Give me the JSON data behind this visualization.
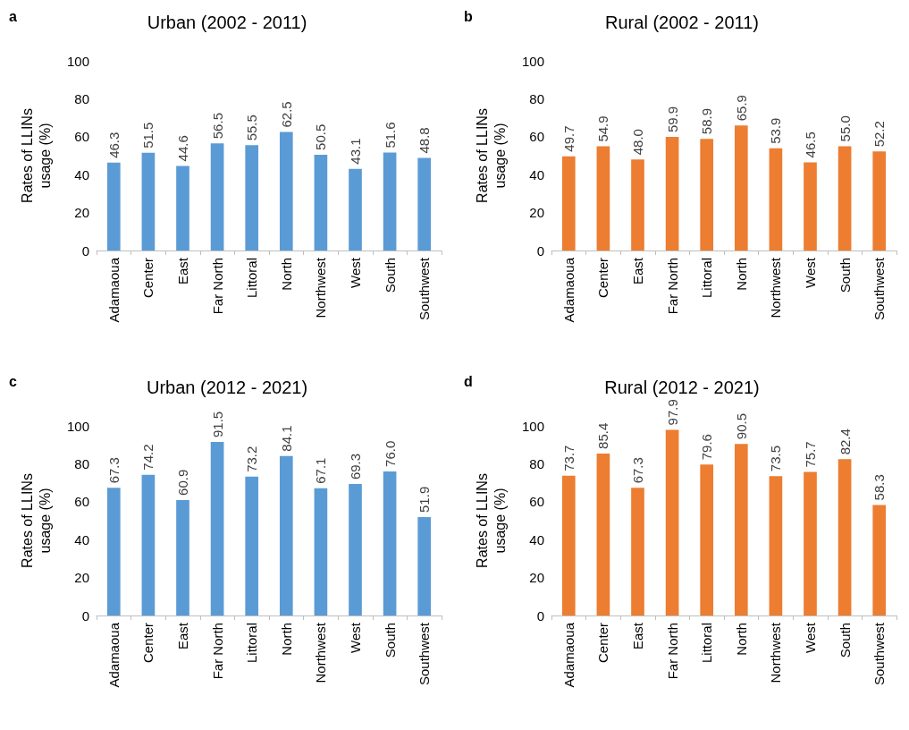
{
  "chart_data": [
    {
      "type": "bar",
      "title": "Urban (2002 - 2011)",
      "ylabel": "Rates of LLINs usage (%)",
      "annotations": [
        "a"
      ],
      "categories": [
        "Adamaoua",
        "Center",
        "East",
        "Far North",
        "Littoral",
        "North",
        "Northwest",
        "West",
        "South",
        "Southwest"
      ],
      "values": [
        46.3,
        51.5,
        44.6,
        56.5,
        55.5,
        62.5,
        50.5,
        43.1,
        51.6,
        48.8
      ],
      "value_labels": [
        "46.3",
        "51.5",
        "44.6",
        "56.5",
        "55.5",
        "62.5",
        "50.5",
        "43.1",
        "51.6",
        "48.8"
      ],
      "color": "#5b9bd5",
      "ylim": [
        0,
        100
      ],
      "yticks": [
        0,
        20,
        40,
        60,
        80,
        100
      ]
    },
    {
      "type": "bar",
      "title": "Rural (2002 - 2011)",
      "ylabel": "Rates of LLINs usage (%)",
      "annotations": [
        "b"
      ],
      "categories": [
        "Adamaoua",
        "Center",
        "East",
        "Far North",
        "Littoral",
        "North",
        "Northwest",
        "West",
        "South",
        "Southwest"
      ],
      "values": [
        49.7,
        54.9,
        48,
        59.9,
        58.9,
        65.9,
        53.9,
        46.5,
        55,
        52.2
      ],
      "value_labels": [
        "49.7",
        "54.9",
        "48.0",
        "59.9",
        "58.9",
        "65.9",
        "53.9",
        "46.5",
        "55.0",
        "52.2"
      ],
      "color": "#ed7d31",
      "ylim": [
        0,
        100
      ],
      "yticks": [
        0,
        20,
        40,
        60,
        80,
        100
      ]
    },
    {
      "type": "bar",
      "title": "Urban (2012 - 2021)",
      "ylabel": "Rates of LLINs usage (%)",
      "annotations": [
        "c"
      ],
      "categories": [
        "Adamaoua",
        "Center",
        "East",
        "Far North",
        "Littoral",
        "North",
        "Northwest",
        "West",
        "South",
        "Southwest"
      ],
      "values": [
        67.3,
        74.2,
        60.9,
        91.5,
        73.2,
        84.1,
        67.1,
        69.3,
        76,
        51.9
      ],
      "value_labels": [
        "67.3",
        "74.2",
        "60.9",
        "91.5",
        "73.2",
        "84.1",
        "67.1",
        "69.3",
        "76.0",
        "51.9"
      ],
      "color": "#5b9bd5",
      "ylim": [
        0,
        100
      ],
      "yticks": [
        0,
        20,
        40,
        60,
        80,
        100
      ]
    },
    {
      "type": "bar",
      "title": "Rural (2012 - 2021)",
      "ylabel": "Rates of LLINs usage (%)",
      "annotations": [
        "d"
      ],
      "categories": [
        "Adamaoua",
        "Center",
        "East",
        "Far North",
        "Littoral",
        "North",
        "Northwest",
        "West",
        "South",
        "Southwest"
      ],
      "values": [
        73.7,
        85.4,
        67.3,
        97.9,
        79.6,
        90.5,
        73.5,
        75.7,
        82.4,
        58.3
      ],
      "value_labels": [
        "73.7",
        "85.4",
        "67.3",
        "97.9",
        "79.6",
        "90.5",
        "73.5",
        "75.7",
        "82.4",
        "58.3"
      ],
      "color": "#ed7d31",
      "ylim": [
        0,
        100
      ],
      "yticks": [
        0,
        20,
        40,
        60,
        80,
        100
      ]
    }
  ]
}
